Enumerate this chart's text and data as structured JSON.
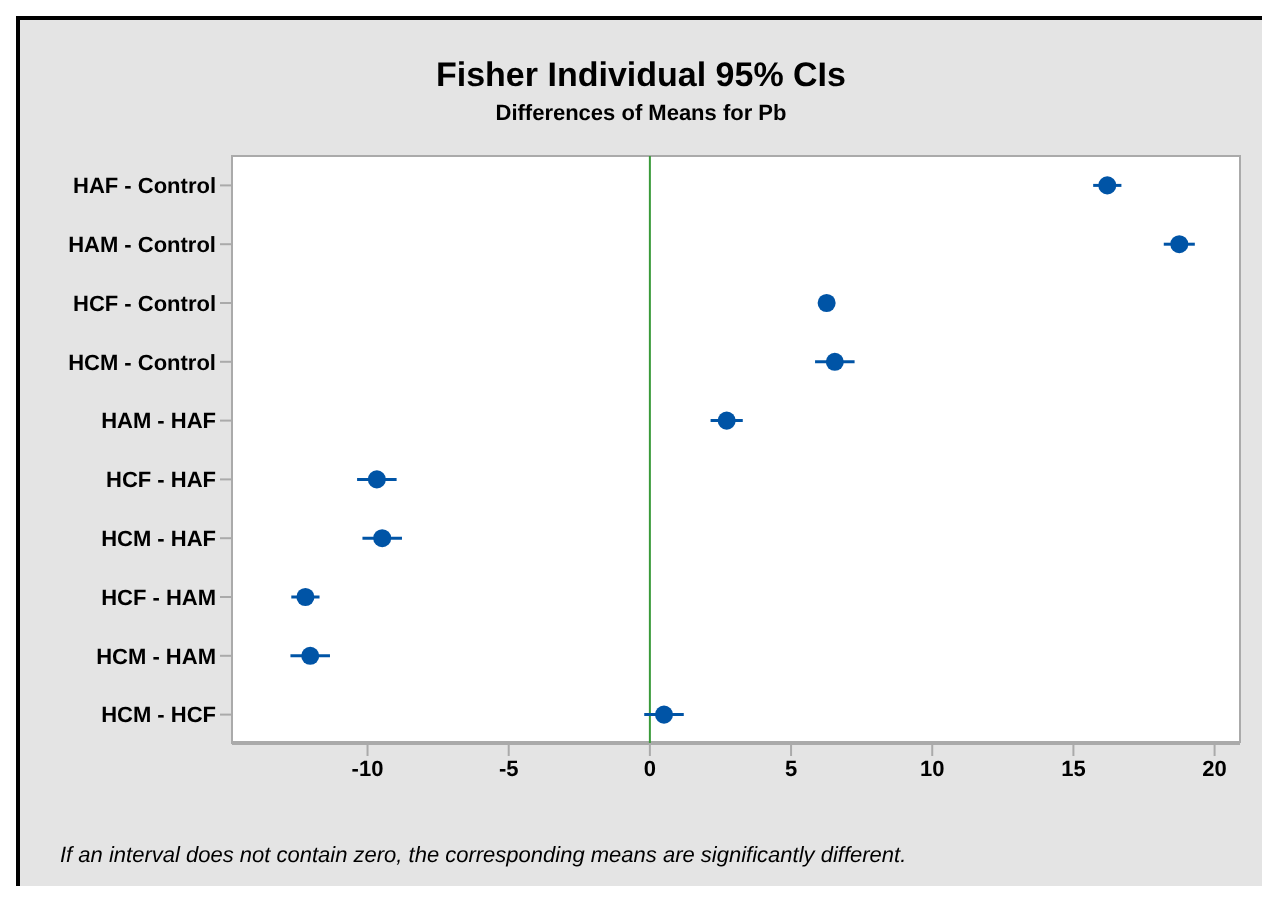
{
  "chart_data": {
    "type": "scatter",
    "title": "Fisher Individual 95% CIs",
    "subtitle": "Differences of Means for Pb",
    "categories": [
      "HAF - Control",
      "HAM - Control",
      "HCF - Control",
      "HCM - Control",
      "HAM - HAF",
      "HCF - HAF",
      "HCM - HAF",
      "HCF - HAM",
      "HCM - HAM",
      "HCM - HCF"
    ],
    "values": [
      16.2,
      18.75,
      6.26,
      6.55,
      2.72,
      -9.67,
      -9.48,
      -12.2,
      -12.03,
      0.5
    ],
    "errors": [
      0.5,
      0.55,
      null,
      0.7,
      0.57,
      0.7,
      0.7,
      0.5,
      0.7,
      0.7
    ],
    "orientation": "horizontal",
    "color": "#0054a6",
    "marker": "circle",
    "xlim": [
      -14.8,
      20.9
    ],
    "xticks": [
      -10,
      -5,
      0,
      5,
      10,
      15,
      20
    ],
    "ref_lines": [
      {
        "axis": "x",
        "value": 0,
        "color": "#3a9a3a"
      }
    ],
    "grid": false,
    "legend": false,
    "annotations": [
      "If an interval does not contain zero, the corresponding means are significantly different."
    ]
  }
}
